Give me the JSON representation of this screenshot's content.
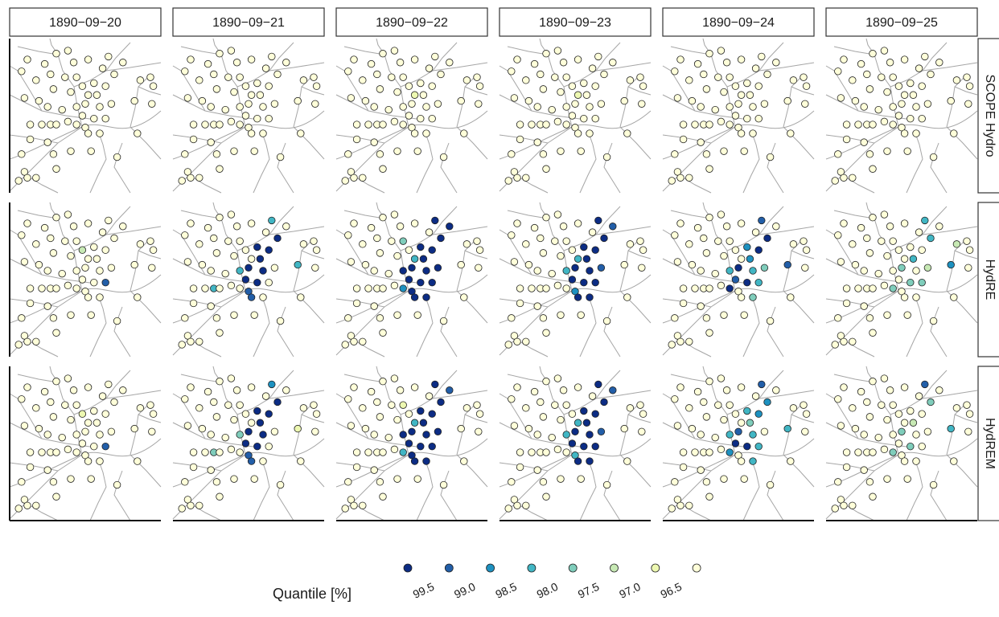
{
  "chart_data": {
    "type": "facet-map",
    "columns": [
      "1890−09−20",
      "1890−09−21",
      "1890−09−22",
      "1890−09−23",
      "1890−09−24",
      "1890−09−25"
    ],
    "rows": [
      "SCOPE Hydro",
      "HydRE",
      "HydREM"
    ],
    "x": [
      10,
      22,
      30,
      38,
      42,
      52,
      62,
      66,
      70,
      76,
      88,
      95,
      97,
      6,
      16,
      26,
      36,
      44,
      48,
      56,
      64,
      28,
      40,
      52,
      58,
      68,
      84,
      96,
      8,
      18,
      24,
      34,
      44,
      50,
      60,
      48,
      56,
      64,
      12,
      20,
      26,
      30,
      38,
      44,
      50,
      52,
      60,
      12,
      24,
      6,
      28,
      40,
      54,
      72,
      86,
      8,
      4,
      10,
      16,
      30
    ],
    "y": [
      12,
      15,
      8,
      6,
      14,
      12,
      18,
      10,
      22,
      14,
      26,
      24,
      30,
      20,
      26,
      22,
      24,
      24,
      30,
      28,
      30,
      32,
      34,
      36,
      36,
      42,
      40,
      42,
      38,
      40,
      44,
      46,
      44,
      42,
      44,
      50,
      52,
      52,
      56,
      56,
      56,
      56,
      54,
      56,
      58,
      62,
      62,
      66,
      68,
      76,
      76,
      74,
      74,
      78,
      62,
      88,
      94,
      92,
      92,
      86
    ],
    "values": [
      [
        [
          96,
          96,
          96,
          96,
          96,
          96,
          96,
          96,
          96,
          96,
          96,
          96,
          96,
          96,
          96,
          96,
          96,
          96,
          96,
          96,
          96,
          96,
          96,
          96,
          96,
          96,
          96,
          96,
          96,
          96,
          96,
          96,
          96,
          96,
          96,
          96,
          96,
          96,
          96,
          96,
          96,
          96,
          96,
          96,
          96,
          96,
          96,
          96,
          96,
          96,
          96,
          96,
          96,
          96,
          96,
          96,
          96,
          96,
          96,
          96
        ],
        [
          96,
          96,
          96,
          96,
          96,
          96,
          96,
          96,
          96,
          96,
          96,
          96,
          96,
          96,
          96,
          96,
          96,
          96,
          96,
          96,
          96,
          96,
          96,
          96,
          96,
          96,
          96,
          96,
          96,
          96,
          96,
          96,
          96,
          96,
          96,
          96,
          96,
          96,
          96,
          96,
          96,
          96,
          96,
          96,
          96,
          96,
          96,
          96,
          96,
          96,
          96,
          96,
          96,
          96,
          96,
          96,
          96,
          96,
          96,
          96
        ],
        [
          96,
          96,
          96,
          96,
          96,
          96,
          96,
          96,
          96,
          96,
          96,
          96,
          96,
          96,
          96,
          96,
          96,
          96,
          96,
          96,
          96,
          96,
          96,
          96.8,
          96,
          96,
          96,
          96,
          96,
          96,
          96,
          96,
          96,
          96,
          96,
          96,
          96,
          96,
          96,
          96,
          96,
          96,
          96,
          96,
          96,
          96,
          96,
          96,
          96,
          96,
          96,
          96,
          96,
          96,
          96,
          96,
          96,
          96,
          96,
          96
        ],
        [
          96,
          96,
          96,
          96,
          96,
          96,
          96,
          96,
          96,
          96,
          96,
          96,
          96,
          96,
          96,
          96,
          96,
          96,
          96,
          96,
          96,
          96,
          96,
          96.8,
          96,
          96,
          96,
          96,
          96,
          96,
          96,
          96,
          96,
          96,
          96,
          96,
          96,
          96,
          96,
          96,
          96,
          96,
          96,
          96,
          96,
          96,
          96,
          96,
          96,
          96,
          96,
          96,
          96,
          96,
          96,
          96,
          96,
          96,
          96,
          96
        ],
        [
          96,
          96,
          96,
          96,
          96,
          96,
          96,
          96,
          96,
          96,
          96,
          96,
          96,
          96,
          96,
          96,
          96,
          96,
          96,
          96,
          96,
          96,
          96,
          96,
          96,
          96,
          96,
          96,
          96,
          96,
          96,
          96,
          96,
          96,
          96,
          96,
          96,
          96,
          96,
          96,
          96,
          96,
          96,
          96,
          96,
          96,
          96,
          96,
          96,
          96,
          96,
          96,
          96,
          96,
          96,
          96,
          96,
          96,
          96,
          96
        ],
        [
          96,
          96,
          96,
          96,
          96,
          96,
          96,
          96,
          96,
          96,
          96,
          96,
          96,
          96,
          96,
          96,
          96,
          96,
          96,
          96,
          96,
          96,
          96,
          96,
          96,
          96,
          96,
          96,
          96,
          96,
          96,
          96,
          96,
          96,
          96,
          96,
          96,
          96,
          96,
          96,
          96,
          96,
          96,
          96,
          96,
          96,
          96,
          96,
          96,
          96,
          96,
          96,
          96,
          96,
          96,
          96,
          96,
          96,
          96,
          96
        ]
      ],
      [
        [
          96,
          96,
          96,
          96,
          96,
          96,
          96,
          96,
          96,
          96,
          96,
          96,
          96,
          96,
          96,
          96,
          96,
          96,
          97.3,
          96,
          96,
          96,
          96,
          96,
          96,
          96,
          96,
          96,
          96,
          96,
          96,
          96,
          96,
          96,
          96,
          96,
          96,
          99.2,
          96,
          96,
          96,
          96,
          96,
          96,
          96,
          96,
          96,
          96,
          96,
          96,
          96,
          96,
          96,
          96,
          96,
          96,
          96,
          96,
          96,
          96
        ],
        [
          96,
          96,
          96,
          96,
          96,
          96,
          96,
          98.3,
          99.7,
          96,
          96,
          96,
          96,
          96,
          96,
          96,
          96,
          96,
          96,
          99.6,
          99.7,
          96,
          96,
          96,
          99.8,
          96,
          98.2,
          96,
          96,
          96,
          96,
          96,
          98.4,
          99.7,
          99.8,
          99.7,
          99.7,
          96,
          96,
          96,
          98.3,
          96,
          96,
          96,
          99.2,
          99.3,
          96,
          96,
          96,
          96,
          96,
          96,
          96,
          96,
          96,
          96,
          96,
          96,
          96,
          96
        ],
        [
          96,
          96,
          96,
          96,
          96,
          96,
          96,
          99.7,
          99.7,
          99.7,
          96,
          96,
          96,
          96,
          96,
          96,
          96,
          97.5,
          96,
          99.7,
          99.7,
          96,
          96,
          98.2,
          99.7,
          99.7,
          96,
          96,
          96,
          96,
          96,
          96,
          99.7,
          99.7,
          99.7,
          99.7,
          99.7,
          99.7,
          96,
          96,
          96,
          96,
          96,
          98.6,
          99.7,
          99.7,
          99.7,
          96,
          96,
          96,
          96,
          96,
          96,
          96,
          96,
          96,
          96,
          96,
          96,
          96
        ],
        [
          96,
          96,
          96,
          96,
          96,
          96,
          96,
          99.7,
          99.7,
          99.2,
          96,
          96,
          96,
          96,
          96,
          96,
          96,
          96,
          96,
          99.7,
          99.7,
          96,
          96,
          98.3,
          99.7,
          99.3,
          96,
          96,
          96,
          96,
          96,
          96,
          98.2,
          99.7,
          99.7,
          99.7,
          99.7,
          99.7,
          96,
          96,
          96,
          96,
          96,
          96,
          98.6,
          99.7,
          99.7,
          96,
          96,
          96,
          96,
          96,
          96,
          96,
          96,
          96,
          96,
          96,
          96,
          96
        ],
        [
          96,
          96,
          96,
          96,
          96,
          96,
          96,
          99.3,
          99.6,
          96,
          96,
          96,
          96,
          96,
          96,
          96,
          96,
          96,
          96,
          98.6,
          99.7,
          96,
          96,
          96,
          98.6,
          97.8,
          99.2,
          96,
          96,
          96,
          96,
          96,
          98.3,
          99.6,
          98.3,
          99.2,
          99.7,
          98.2,
          96,
          96,
          96,
          96,
          96,
          99.6,
          96,
          96,
          97.8,
          96,
          96,
          96,
          96,
          96,
          96,
          96,
          96,
          96,
          96,
          96,
          96,
          96
        ],
        [
          96,
          96,
          96,
          96,
          96,
          96,
          96,
          98.3,
          98.1,
          96,
          97.2,
          96,
          96,
          96,
          96,
          96,
          96,
          96,
          96,
          96,
          96,
          96,
          96,
          96,
          98.0,
          97.2,
          98.6,
          96,
          96,
          96,
          96,
          96,
          96,
          97.6,
          96,
          96,
          97.8,
          97.6,
          96,
          96,
          96,
          96,
          96,
          97.7,
          96,
          96,
          96,
          96,
          96,
          96,
          96,
          96,
          96,
          96,
          96,
          96,
          96,
          96,
          96,
          96
        ]
      ],
      [
        [
          96,
          96,
          96,
          96,
          96,
          96,
          96,
          96,
          96,
          96,
          96,
          96,
          96,
          96,
          96,
          96,
          96,
          96,
          96.8,
          96,
          96,
          96,
          96,
          96,
          96,
          96,
          96,
          96,
          96,
          96,
          96,
          96,
          96,
          96,
          96,
          96,
          96,
          99.2,
          96,
          96,
          96,
          96,
          96,
          96,
          96,
          96,
          96,
          96,
          96,
          96,
          96,
          96,
          96,
          96,
          96,
          96,
          96,
          96,
          96,
          96
        ],
        [
          96,
          96,
          96,
          96,
          96,
          96,
          96,
          98.8,
          99.7,
          96,
          96,
          96,
          96,
          96,
          96,
          96,
          96,
          96,
          96,
          99.6,
          99.7,
          96,
          96,
          96,
          99.8,
          96,
          96.8,
          96,
          96,
          96,
          96,
          96,
          97.8,
          99.7,
          99.8,
          99.7,
          99.7,
          96,
          96,
          96,
          97.8,
          96,
          96,
          96,
          99.2,
          99.3,
          96,
          96,
          96,
          96,
          96,
          96,
          96,
          96,
          96,
          96,
          96,
          96,
          96,
          96
        ],
        [
          96,
          96,
          96,
          96,
          96,
          96,
          96,
          99.7,
          99.7,
          99.2,
          96,
          96,
          96,
          96,
          96,
          96,
          96,
          96.8,
          96,
          99.7,
          99.7,
          96,
          96,
          98.0,
          99.7,
          99.7,
          96,
          96,
          96,
          96,
          96,
          96,
          99.7,
          99.7,
          99.7,
          99.7,
          99.7,
          99.7,
          96,
          96,
          96,
          96,
          96,
          98.3,
          99.7,
          99.7,
          99.7,
          96,
          96,
          96,
          96,
          96,
          96,
          96,
          96,
          96,
          96,
          96,
          96,
          96
        ],
        [
          96,
          96,
          96,
          96,
          96,
          96,
          96,
          99.7,
          99.7,
          99.2,
          96,
          96,
          96,
          96,
          96,
          96,
          96,
          96,
          96,
          99.7,
          99.7,
          96,
          96,
          98.2,
          99.7,
          99.2,
          96,
          96,
          96,
          96,
          96,
          96,
          98.0,
          99.7,
          99.7,
          99.7,
          99.7,
          99.7,
          96,
          96,
          96,
          96,
          96,
          96,
          98.2,
          99.7,
          99.7,
          96,
          96,
          96,
          96,
          96,
          96,
          96,
          96,
          96,
          96,
          96,
          96,
          96
        ],
        [
          96,
          96,
          96,
          96,
          96,
          96,
          96,
          99.3,
          98.6,
          96,
          96,
          96,
          96,
          96,
          96,
          96,
          96,
          96,
          96,
          98.0,
          98.6,
          96,
          96,
          96,
          97.8,
          96,
          98.2,
          96,
          96,
          96,
          96,
          96,
          98.3,
          99.4,
          98.3,
          99.6,
          99.7,
          98.2,
          96,
          96,
          96,
          96,
          96,
          98.8,
          96,
          96,
          98.2,
          96,
          96,
          96,
          96,
          96,
          96,
          96,
          96,
          96,
          96,
          96,
          96,
          96
        ],
        [
          96,
          96,
          96,
          96,
          96,
          96,
          96,
          99.2,
          97.8,
          96,
          96,
          96,
          96,
          96,
          96,
          96,
          96,
          96,
          96,
          96,
          96,
          96,
          96,
          96,
          97.2,
          96,
          98.0,
          96,
          96,
          96,
          96,
          96,
          96,
          97.6,
          96,
          96,
          97.6,
          96,
          96,
          96,
          96,
          96,
          96,
          97.7,
          96,
          96,
          96,
          96,
          96,
          96,
          96,
          96,
          96,
          96,
          96,
          96,
          96,
          96,
          96,
          96
        ]
      ]
    ],
    "legend": {
      "title": "Quantile [%]",
      "colors": [
        "#0c2c84",
        "#225ea8",
        "#1d91c0",
        "#41b6c4",
        "#7fcdbb",
        "#c7e9b4",
        "#edf8b1",
        "#ffffd9"
      ],
      "breaks": [
        99.5,
        {
          "value": 99,
          "label": "99.0"
        },
        98.5,
        {
          "value": 98,
          "label": "98.0"
        },
        97.5,
        {
          "value": 97,
          "label": "97.0"
        },
        96.5
      ]
    }
  }
}
